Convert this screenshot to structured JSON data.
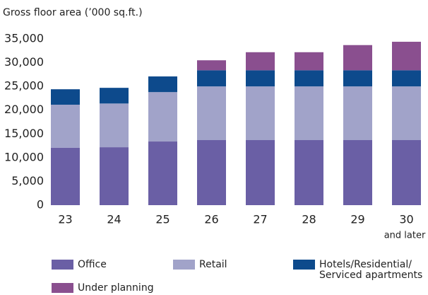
{
  "chart_data": {
    "type": "stacked_bar",
    "y_axis_label": "Gross floor area (’000 sq.ft.)",
    "categories": [
      "23",
      "24",
      "25",
      "26",
      "27",
      "28",
      "29",
      "30"
    ],
    "annotations": [
      "and later"
    ],
    "series": [
      {
        "name": "Office",
        "color": "#6a5fa5",
        "values": [
          12100,
          12200,
          13400,
          13700,
          13700,
          13700,
          13700,
          13700
        ]
      },
      {
        "name": "Retail",
        "color": "#a1a3c9",
        "values": [
          9050,
          9200,
          10400,
          11300,
          11300,
          11300,
          11300,
          11300
        ]
      },
      {
        "name": "Hotels/Residential/\nServiced apartments",
        "color": "#0d4a8c",
        "values": [
          3250,
          3300,
          3300,
          3400,
          3400,
          3400,
          3400,
          3400
        ]
      },
      {
        "name": "Under planning",
        "color": "#8a4f8f",
        "values": [
          null,
          null,
          null,
          2100,
          3800,
          3800,
          5300,
          6000
        ]
      }
    ],
    "ylim": [
      0,
      35000
    ],
    "yticks": [
      0,
      {
        "value": 5000,
        "label": "5,000"
      },
      {
        "value": 10000,
        "label": "10,000"
      },
      {
        "value": 15000,
        "label": "15,000"
      },
      {
        "value": 20000,
        "label": "20,000"
      },
      {
        "value": 25000,
        "label": "25,000"
      },
      {
        "value": 30000,
        "label": "30,000"
      },
      {
        "value": 35000,
        "label": "35,000"
      }
    ],
    "grid": false,
    "legend": "bottom"
  }
}
